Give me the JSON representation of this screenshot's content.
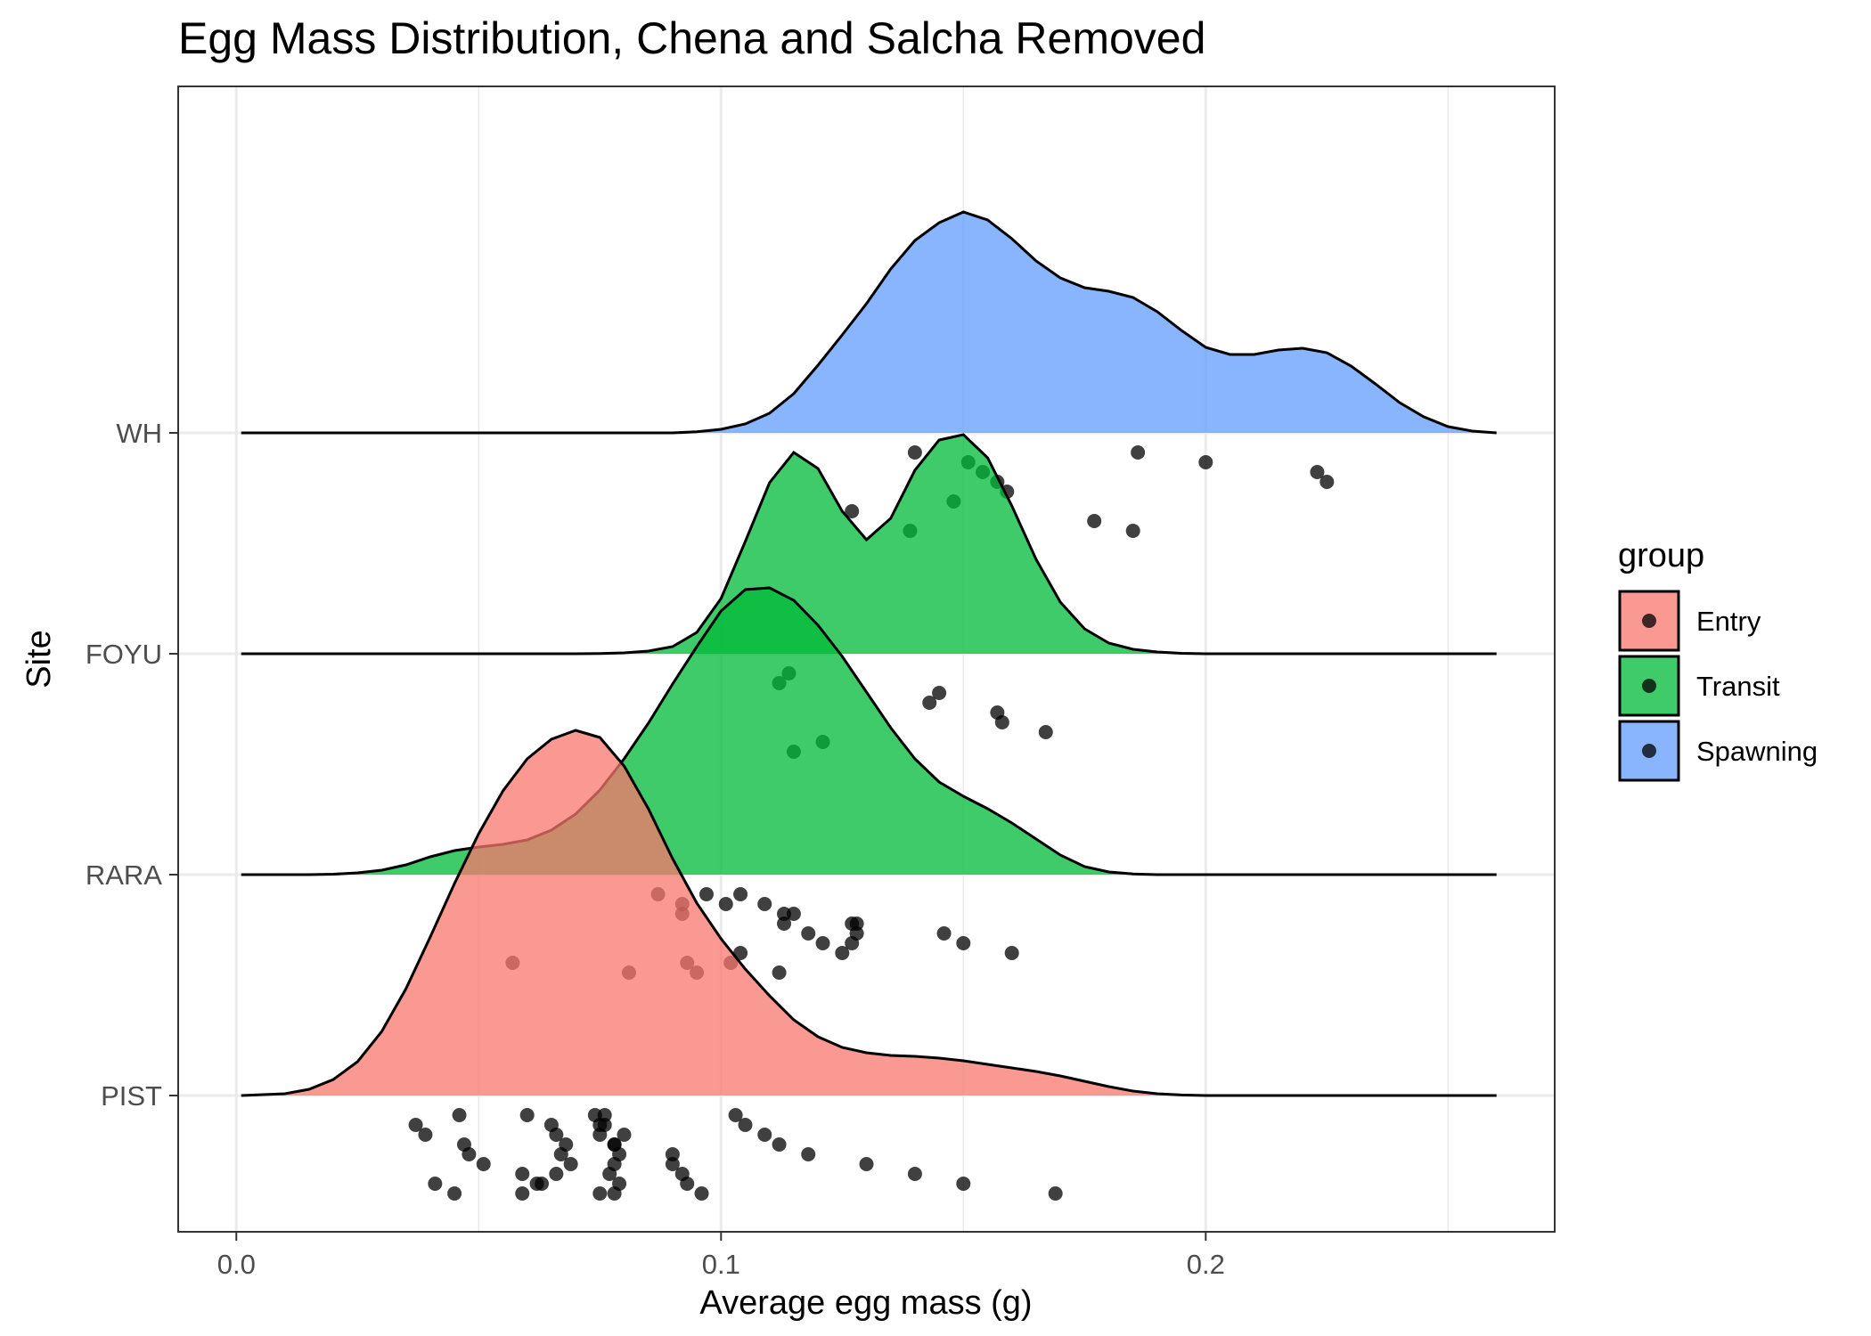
{
  "chart_data": {
    "type": "ridgeline",
    "title": "Egg Mass Distribution, Chena and Salcha Removed",
    "xlabel": "Average egg mass (g)",
    "ylabel": "Site",
    "xlim": [
      -0.012,
      0.272
    ],
    "x_ticks": [
      0.0,
      0.1,
      0.2
    ],
    "x_tick_labels": [
      "0.0",
      "0.1",
      "0.2"
    ],
    "grid": true,
    "legend": {
      "title": "group",
      "position": "right",
      "entries": [
        {
          "label": "Entry",
          "color": "#F8766D"
        },
        {
          "label": "Transit",
          "color": "#00BA38"
        },
        {
          "label": "Spawning",
          "color": "#619CFF"
        }
      ]
    },
    "sites": [
      "PIST",
      "RARA",
      "FOYU",
      "WH"
    ],
    "series": [
      {
        "site": "WH",
        "group": "Spawning",
        "density_x": [
          0.001,
          0.09,
          0.095,
          0.1,
          0.105,
          0.11,
          0.115,
          0.12,
          0.125,
          0.13,
          0.135,
          0.14,
          0.145,
          0.15,
          0.155,
          0.16,
          0.165,
          0.17,
          0.175,
          0.18,
          0.185,
          0.19,
          0.195,
          0.2,
          0.205,
          0.21,
          0.215,
          0.22,
          0.225,
          0.23,
          0.235,
          0.24,
          0.245,
          0.25,
          0.255,
          0.26
        ],
        "density_y": [
          0.0,
          0.0,
          0.012,
          0.04,
          0.1,
          0.22,
          0.44,
          0.76,
          1.1,
          1.45,
          1.84,
          2.16,
          2.36,
          2.48,
          2.39,
          2.18,
          1.93,
          1.74,
          1.63,
          1.59,
          1.52,
          1.36,
          1.15,
          0.96,
          0.88,
          0.88,
          0.93,
          0.95,
          0.9,
          0.75,
          0.55,
          0.34,
          0.18,
          0.07,
          0.02,
          0.0
        ]
      },
      {
        "site": "FOYU",
        "group": "Transit",
        "density_x": [
          0.001,
          0.07,
          0.075,
          0.08,
          0.085,
          0.09,
          0.095,
          0.1,
          0.105,
          0.11,
          0.115,
          0.12,
          0.125,
          0.13,
          0.135,
          0.14,
          0.145,
          0.15,
          0.155,
          0.16,
          0.165,
          0.17,
          0.175,
          0.18,
          0.185,
          0.19,
          0.195,
          0.2,
          0.26
        ],
        "density_y": [
          0.0,
          0.0,
          0.003,
          0.01,
          0.03,
          0.08,
          0.24,
          0.62,
          1.26,
          1.92,
          2.26,
          2.08,
          1.6,
          1.28,
          1.52,
          2.06,
          2.4,
          2.46,
          2.2,
          1.66,
          1.06,
          0.58,
          0.28,
          0.12,
          0.05,
          0.02,
          0.005,
          0.0,
          0.0
        ]
      },
      {
        "site": "RARA",
        "group": "Transit",
        "density_x": [
          0.001,
          0.015,
          0.02,
          0.025,
          0.03,
          0.035,
          0.04,
          0.045,
          0.05,
          0.055,
          0.06,
          0.065,
          0.07,
          0.075,
          0.08,
          0.085,
          0.09,
          0.095,
          0.1,
          0.105,
          0.11,
          0.115,
          0.12,
          0.125,
          0.13,
          0.135,
          0.14,
          0.145,
          0.15,
          0.155,
          0.16,
          0.165,
          0.17,
          0.175,
          0.18,
          0.185,
          0.19,
          0.26
        ],
        "density_y": [
          0.0,
          0.0,
          0.005,
          0.02,
          0.05,
          0.11,
          0.2,
          0.27,
          0.31,
          0.34,
          0.39,
          0.5,
          0.68,
          0.95,
          1.3,
          1.7,
          2.14,
          2.56,
          2.96,
          3.2,
          3.22,
          3.08,
          2.8,
          2.45,
          2.05,
          1.65,
          1.3,
          1.04,
          0.88,
          0.74,
          0.58,
          0.4,
          0.22,
          0.09,
          0.03,
          0.008,
          0.0,
          0.0
        ]
      },
      {
        "site": "PIST",
        "group": "Entry",
        "density_x": [
          0.001,
          0.01,
          0.015,
          0.02,
          0.025,
          0.03,
          0.035,
          0.04,
          0.045,
          0.05,
          0.055,
          0.06,
          0.065,
          0.07,
          0.075,
          0.08,
          0.085,
          0.09,
          0.095,
          0.1,
          0.105,
          0.11,
          0.115,
          0.12,
          0.125,
          0.13,
          0.135,
          0.14,
          0.145,
          0.15,
          0.155,
          0.16,
          0.165,
          0.17,
          0.175,
          0.18,
          0.185,
          0.19,
          0.195,
          0.2,
          0.26
        ],
        "density_y": [
          0.0,
          0.02,
          0.07,
          0.18,
          0.38,
          0.72,
          1.2,
          1.78,
          2.38,
          2.94,
          3.42,
          3.78,
          4.0,
          4.1,
          4.02,
          3.7,
          3.22,
          2.66,
          2.16,
          1.76,
          1.42,
          1.12,
          0.85,
          0.66,
          0.54,
          0.48,
          0.45,
          0.44,
          0.42,
          0.39,
          0.35,
          0.31,
          0.27,
          0.22,
          0.16,
          0.1,
          0.05,
          0.02,
          0.006,
          0.0,
          0.0
        ]
      }
    ],
    "points": [
      {
        "site": "WH",
        "values": [
          0.139,
          0.14,
          0.151,
          0.154,
          0.157,
          0.159,
          0.148,
          0.127,
          0.177,
          0.185,
          0.186,
          0.2,
          0.223,
          0.225
        ]
      },
      {
        "site": "FOYU",
        "values": [
          0.121,
          0.115,
          0.114,
          0.112,
          0.145,
          0.143,
          0.157,
          0.158,
          0.167
        ]
      },
      {
        "site": "RARA",
        "values": [
          0.057,
          0.081,
          0.104,
          0.109,
          0.113,
          0.113,
          0.118,
          0.127,
          0.125,
          0.093,
          0.095,
          0.097,
          0.101,
          0.115,
          0.127,
          0.128,
          0.121,
          0.104,
          0.102,
          0.112,
          0.087,
          0.092,
          0.092,
          0.128,
          0.146,
          0.15,
          0.16
        ]
      },
      {
        "site": "PIST",
        "values": [
          0.041,
          0.045,
          0.046,
          0.037,
          0.039,
          0.047,
          0.048,
          0.051,
          0.059,
          0.062,
          0.059,
          0.06,
          0.065,
          0.066,
          0.068,
          0.067,
          0.069,
          0.066,
          0.063,
          0.075,
          0.074,
          0.076,
          0.075,
          0.078,
          0.079,
          0.078,
          0.077,
          0.079,
          0.078,
          0.076,
          0.075,
          0.08,
          0.078,
          0.09,
          0.09,
          0.092,
          0.093,
          0.096,
          0.103,
          0.105,
          0.109,
          0.112,
          0.118,
          0.13,
          0.14,
          0.15,
          0.169
        ]
      }
    ]
  }
}
